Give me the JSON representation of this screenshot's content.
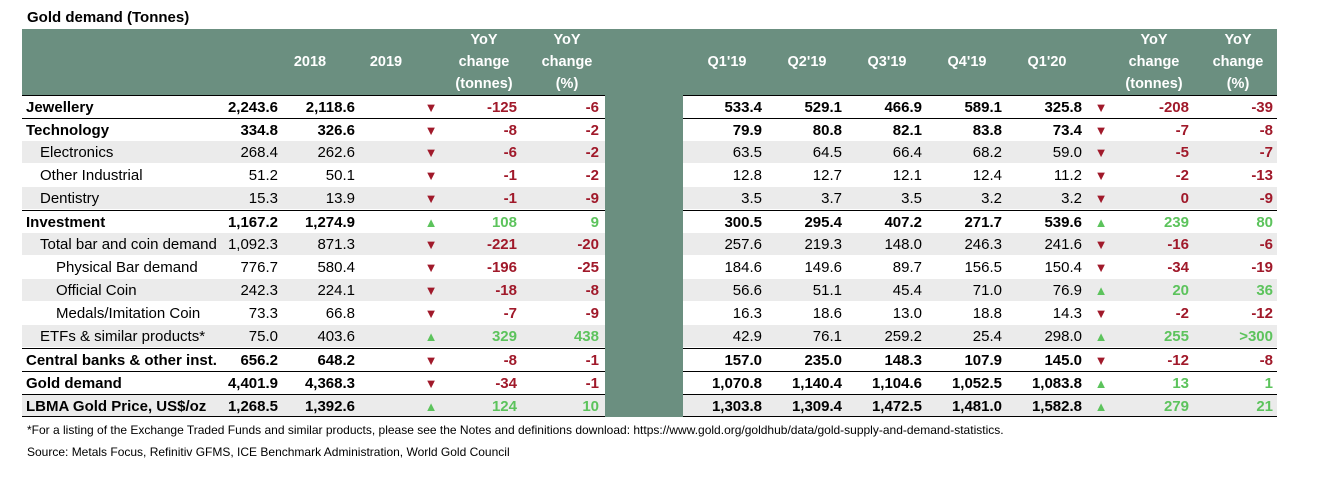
{
  "title": "Gold demand (Tonnes)",
  "left_headers": {
    "c2018": "2018",
    "c2019": "2019",
    "yoy_t": [
      "YoY",
      "change",
      "(tonnes)"
    ],
    "yoy_p": [
      "YoY",
      "change",
      "(%)"
    ]
  },
  "right_headers": {
    "q1": "Q1'19",
    "q2": "Q2'19",
    "q3": "Q3'19",
    "q4": "Q4'19",
    "q5": "Q1'20",
    "yoy_t": [
      "YoY",
      "change",
      "(tonnes)"
    ],
    "yoy_p": [
      "YoY",
      "change",
      "(%)"
    ]
  },
  "rows": [
    {
      "label": "Jewellery",
      "level": 0,
      "section": true,
      "shade": false,
      "y2018": "2,243.6",
      "y2019": "2,118.6",
      "annual_dir": "down",
      "annual_t": "-125",
      "annual_p": "-6",
      "q": [
        "533.4",
        "529.1",
        "466.9",
        "589.1",
        "325.8"
      ],
      "q_dir": "down",
      "q_t": "-208",
      "q_p": "-39"
    },
    {
      "label": "Technology",
      "level": 0,
      "section": true,
      "shade": false,
      "y2018": "334.8",
      "y2019": "326.6",
      "annual_dir": "down",
      "annual_t": "-8",
      "annual_p": "-2",
      "q": [
        "79.9",
        "80.8",
        "82.1",
        "83.8",
        "73.4"
      ],
      "q_dir": "down",
      "q_t": "-7",
      "q_p": "-8"
    },
    {
      "label": "Electronics",
      "level": 1,
      "section": false,
      "shade": true,
      "y2018": "268.4",
      "y2019": "262.6",
      "annual_dir": "down",
      "annual_t": "-6",
      "annual_p": "-2",
      "q": [
        "63.5",
        "64.5",
        "66.4",
        "68.2",
        "59.0"
      ],
      "q_dir": "down",
      "q_t": "-5",
      "q_p": "-7"
    },
    {
      "label": "Other Industrial",
      "level": 1,
      "section": false,
      "shade": false,
      "y2018": "51.2",
      "y2019": "50.1",
      "annual_dir": "down",
      "annual_t": "-1",
      "annual_p": "-2",
      "q": [
        "12.8",
        "12.7",
        "12.1",
        "12.4",
        "11.2"
      ],
      "q_dir": "down",
      "q_t": "-2",
      "q_p": "-13"
    },
    {
      "label": "Dentistry",
      "level": 1,
      "section": false,
      "shade": true,
      "y2018": "15.3",
      "y2019": "13.9",
      "annual_dir": "down",
      "annual_t": "-1",
      "annual_p": "-9",
      "q": [
        "3.5",
        "3.7",
        "3.5",
        "3.2",
        "3.2"
      ],
      "q_dir": "down",
      "q_t": "0",
      "q_p": "-9"
    },
    {
      "label": "Investment",
      "level": 0,
      "section": true,
      "shade": false,
      "y2018": "1,167.2",
      "y2019": "1,274.9",
      "annual_dir": "up",
      "annual_t": "108",
      "annual_p": "9",
      "q": [
        "300.5",
        "295.4",
        "407.2",
        "271.7",
        "539.6"
      ],
      "q_dir": "up",
      "q_t": "239",
      "q_p": "80"
    },
    {
      "label": "Total bar and coin demand",
      "level": 1,
      "section": false,
      "shade": true,
      "y2018": "1,092.3",
      "y2019": "871.3",
      "annual_dir": "down",
      "annual_t": "-221",
      "annual_p": "-20",
      "q": [
        "257.6",
        "219.3",
        "148.0",
        "246.3",
        "241.6"
      ],
      "q_dir": "down",
      "q_t": "-16",
      "q_p": "-6"
    },
    {
      "label": "Physical Bar demand",
      "level": 2,
      "section": false,
      "shade": false,
      "y2018": "776.7",
      "y2019": "580.4",
      "annual_dir": "down",
      "annual_t": "-196",
      "annual_p": "-25",
      "q": [
        "184.6",
        "149.6",
        "89.7",
        "156.5",
        "150.4"
      ],
      "q_dir": "down",
      "q_t": "-34",
      "q_p": "-19"
    },
    {
      "label": "Official Coin",
      "level": 2,
      "section": false,
      "shade": true,
      "y2018": "242.3",
      "y2019": "224.1",
      "annual_dir": "down",
      "annual_t": "-18",
      "annual_p": "-8",
      "q": [
        "56.6",
        "51.1",
        "45.4",
        "71.0",
        "76.9"
      ],
      "q_dir": "up",
      "q_t": "20",
      "q_p": "36"
    },
    {
      "label": "Medals/Imitation Coin",
      "level": 2,
      "section": false,
      "shade": false,
      "y2018": "73.3",
      "y2019": "66.8",
      "annual_dir": "down",
      "annual_t": "-7",
      "annual_p": "-9",
      "q": [
        "16.3",
        "18.6",
        "13.0",
        "18.8",
        "14.3"
      ],
      "q_dir": "down",
      "q_t": "-2",
      "q_p": "-12"
    },
    {
      "label": "ETFs & similar products*",
      "level": 1,
      "section": false,
      "shade": true,
      "y2018": "75.0",
      "y2019": "403.6",
      "annual_dir": "up",
      "annual_t": "329",
      "annual_p": "438",
      "q": [
        "42.9",
        "76.1",
        "259.2",
        "25.4",
        "298.0"
      ],
      "q_dir": "up",
      "q_t": "255",
      "q_p": ">300"
    },
    {
      "label": "Central banks & other inst.",
      "level": 0,
      "section": true,
      "shade": false,
      "y2018": "656.2",
      "y2019": "648.2",
      "annual_dir": "down",
      "annual_t": "-8",
      "annual_p": "-1",
      "q": [
        "157.0",
        "235.0",
        "148.3",
        "107.9",
        "145.0"
      ],
      "q_dir": "down",
      "q_t": "-12",
      "q_p": "-8"
    },
    {
      "label": "Gold demand",
      "level": 0,
      "section": true,
      "shade": false,
      "y2018": "4,401.9",
      "y2019": "4,368.3",
      "annual_dir": "down",
      "annual_t": "-34",
      "annual_p": "-1",
      "q": [
        "1,070.8",
        "1,140.4",
        "1,104.6",
        "1,052.5",
        "1,083.8"
      ],
      "q_dir": "up",
      "q_t": "13",
      "q_p": "1"
    },
    {
      "label": "LBMA Gold Price, US$/oz",
      "level": 0,
      "section": true,
      "shade": true,
      "y2018": "1,268.5",
      "y2019": "1,392.6",
      "annual_dir": "up",
      "annual_t": "124",
      "annual_p": "10",
      "q": [
        "1,303.8",
        "1,309.4",
        "1,472.5",
        "1,481.0",
        "1,582.8"
      ],
      "q_dir": "up",
      "q_t": "279",
      "q_p": "21"
    }
  ],
  "footnote": "*For a listing of the Exchange Traded Funds and similar products, please see the Notes and definitions download: https://www.gold.org/goldhub/data/gold-supply-and-demand-statistics.",
  "source": "Source: Metals Focus, Refinitiv GFMS, ICE Benchmark Administration, World Gold Council",
  "colors": {
    "header_bg": "#6b8f80",
    "down": "#a0192a",
    "up": "#5cc35c",
    "shade": "#ebebeb"
  }
}
